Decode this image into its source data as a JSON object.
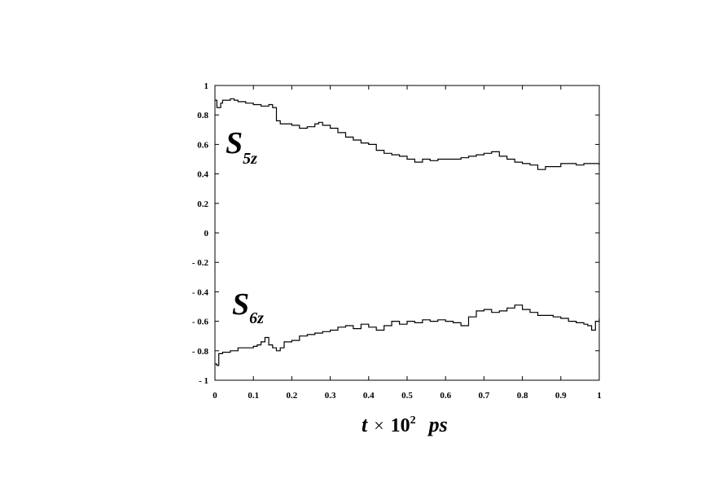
{
  "chart_data": {
    "type": "line",
    "title": "",
    "xlabel": {
      "t": "t",
      "times": "×",
      "base": "10",
      "exp": "2",
      "unit": "ps"
    },
    "ylabel": "",
    "xlim": [
      0,
      1
    ],
    "ylim": [
      -1,
      1
    ],
    "x_ticks": [
      0,
      0.1,
      0.2,
      0.3,
      0.4,
      0.5,
      0.6,
      0.7,
      0.8,
      0.9,
      1
    ],
    "x_tick_labels": [
      "0",
      "0.1",
      "0.2",
      "0.3",
      "0.4",
      "0.5",
      "0.6",
      "0.7",
      "0.8",
      "0.9",
      "1"
    ],
    "y_ticks": [
      1,
      0.8,
      0.6,
      0.4,
      0.2,
      0,
      -0.2,
      -0.4,
      -0.6,
      -0.8,
      -1
    ],
    "y_tick_labels": [
      "1",
      "0.8",
      "0.6",
      "0.4",
      "0.2",
      "0",
      "- 0.2",
      "- 0.4",
      "- 0.6",
      "- 0.8",
      "- 1"
    ],
    "grid": false,
    "legend": "none",
    "series": [
      {
        "name": "S5z",
        "label_main": "S",
        "label_sub": "5z",
        "color": "#000000",
        "x": [
          0,
          0.005,
          0.01,
          0.015,
          0.02,
          0.03,
          0.04,
          0.05,
          0.06,
          0.08,
          0.1,
          0.12,
          0.14,
          0.15,
          0.16,
          0.17,
          0.18,
          0.2,
          0.22,
          0.24,
          0.26,
          0.27,
          0.28,
          0.3,
          0.32,
          0.34,
          0.36,
          0.38,
          0.4,
          0.42,
          0.44,
          0.46,
          0.48,
          0.5,
          0.52,
          0.54,
          0.56,
          0.58,
          0.6,
          0.62,
          0.64,
          0.66,
          0.68,
          0.7,
          0.72,
          0.74,
          0.76,
          0.78,
          0.8,
          0.82,
          0.84,
          0.86,
          0.88,
          0.9,
          0.92,
          0.94,
          0.96,
          0.98,
          1
        ],
        "y": [
          0.9,
          0.85,
          0.85,
          0.88,
          0.9,
          0.9,
          0.91,
          0.9,
          0.89,
          0.88,
          0.87,
          0.86,
          0.87,
          0.85,
          0.76,
          0.74,
          0.74,
          0.73,
          0.71,
          0.72,
          0.74,
          0.75,
          0.73,
          0.71,
          0.68,
          0.65,
          0.63,
          0.61,
          0.6,
          0.56,
          0.54,
          0.53,
          0.52,
          0.5,
          0.48,
          0.5,
          0.49,
          0.5,
          0.5,
          0.5,
          0.51,
          0.52,
          0.53,
          0.54,
          0.55,
          0.52,
          0.5,
          0.48,
          0.47,
          0.46,
          0.43,
          0.45,
          0.45,
          0.47,
          0.47,
          0.46,
          0.47,
          0.47,
          0.46
        ]
      },
      {
        "name": "S6z",
        "label_main": "S",
        "label_sub": "6z",
        "color": "#000000",
        "x": [
          0,
          0.005,
          0.01,
          0.02,
          0.04,
          0.06,
          0.08,
          0.1,
          0.11,
          0.12,
          0.13,
          0.14,
          0.15,
          0.16,
          0.17,
          0.18,
          0.2,
          0.22,
          0.24,
          0.26,
          0.28,
          0.3,
          0.32,
          0.34,
          0.36,
          0.38,
          0.4,
          0.42,
          0.44,
          0.46,
          0.48,
          0.5,
          0.52,
          0.54,
          0.56,
          0.58,
          0.6,
          0.62,
          0.64,
          0.66,
          0.68,
          0.7,
          0.72,
          0.74,
          0.76,
          0.78,
          0.8,
          0.82,
          0.84,
          0.86,
          0.88,
          0.9,
          0.92,
          0.94,
          0.96,
          0.97,
          0.98,
          0.99,
          1
        ],
        "y": [
          -0.89,
          -0.9,
          -0.82,
          -0.81,
          -0.8,
          -0.78,
          -0.78,
          -0.77,
          -0.76,
          -0.74,
          -0.71,
          -0.76,
          -0.78,
          -0.8,
          -0.78,
          -0.74,
          -0.73,
          -0.7,
          -0.69,
          -0.68,
          -0.67,
          -0.66,
          -0.64,
          -0.63,
          -0.65,
          -0.62,
          -0.64,
          -0.66,
          -0.63,
          -0.6,
          -0.62,
          -0.6,
          -0.61,
          -0.59,
          -0.6,
          -0.59,
          -0.6,
          -0.61,
          -0.63,
          -0.57,
          -0.53,
          -0.52,
          -0.54,
          -0.53,
          -0.51,
          -0.49,
          -0.52,
          -0.54,
          -0.56,
          -0.56,
          -0.57,
          -0.58,
          -0.6,
          -0.61,
          -0.62,
          -0.63,
          -0.66,
          -0.6,
          -0.58
        ]
      }
    ]
  }
}
